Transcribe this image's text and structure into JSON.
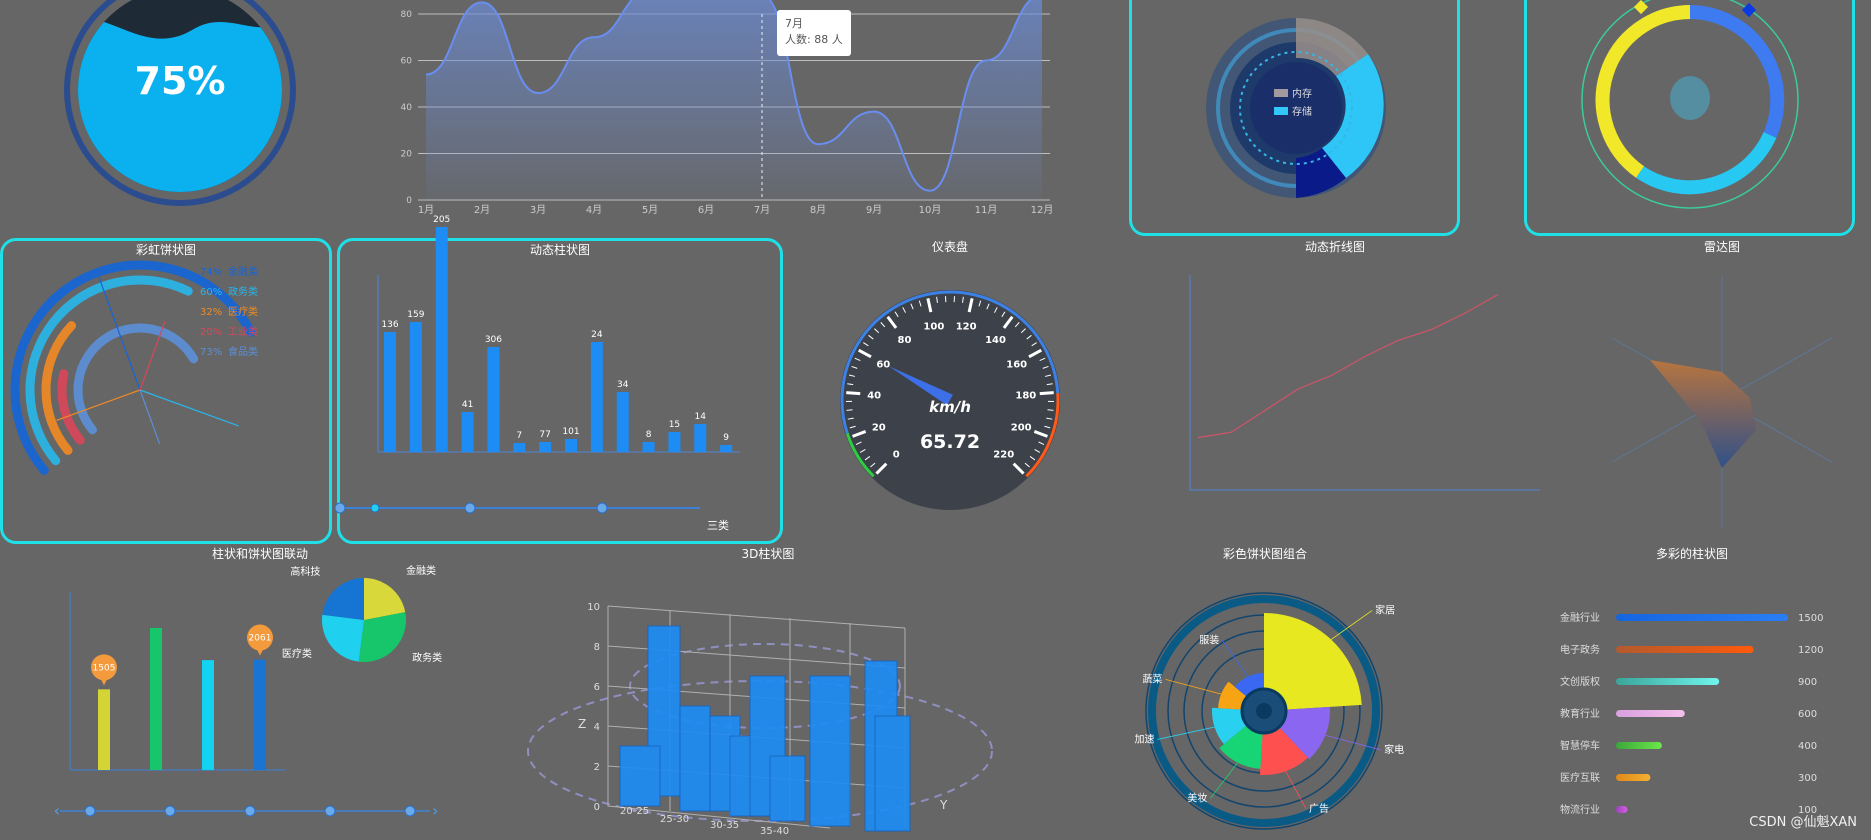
{
  "titles": {
    "rainbow_pie": "彩虹饼状图",
    "dynamic_bar": "动态柱状图",
    "gauge": "仪表盘",
    "dynamic_line": "动态折线图",
    "radar": "雷达图",
    "bar_pie_link": "柱状和饼状图联动",
    "bar3d": "3D柱状图",
    "color_pie_combo": "彩色饼状图组合",
    "colorful_bar": "多彩的柱状图"
  },
  "colors": {
    "panel_border": "#1fe0e6",
    "background": "#666666",
    "bar_blue": "#1e8cf5"
  },
  "watermark": "CSDN @仙魁XAN",
  "chart_data": [
    {
      "id": "liquid",
      "type": "liquidfill",
      "value_label": "75%",
      "value": 0.75
    },
    {
      "id": "area_line",
      "type": "area",
      "categories": [
        "1月",
        "2月",
        "3月",
        "4月",
        "5月",
        "6月",
        "7月",
        "8月",
        "9月",
        "10月",
        "11月",
        "12月"
      ],
      "values": [
        54,
        85,
        46,
        70,
        90,
        90,
        88,
        24,
        38,
        4,
        60,
        88
      ],
      "ylim": [
        0,
        80
      ],
      "yticks": [
        "0",
        "20",
        "40",
        "60",
        "80"
      ],
      "tooltip": {
        "title": "7月",
        "text": "人数:  88 人"
      }
    },
    {
      "id": "ring_memory",
      "type": "pie",
      "legend": [
        "内存",
        "存储"
      ]
    },
    {
      "id": "ring_progress",
      "type": "pie"
    },
    {
      "id": "rainbow_pie",
      "type": "bar",
      "series": [
        {
          "pct": "74%",
          "name": "金融类",
          "color": "#1565d8",
          "value": 74
        },
        {
          "pct": "60%",
          "name": "政务类",
          "color": "#29b6e8",
          "value": 60
        },
        {
          "pct": "32%",
          "name": "医疗类",
          "color": "#f08a24",
          "value": 32
        },
        {
          "pct": "20%",
          "name": "工业类",
          "color": "#d9475a",
          "value": 20
        },
        {
          "pct": "73%",
          "name": "食品类",
          "color": "#5b8fd6",
          "value": 73
        }
      ]
    },
    {
      "id": "dynamic_bar",
      "type": "bar",
      "values": [
        136,
        159,
        205,
        41,
        306,
        7,
        77,
        101,
        24,
        34,
        8,
        15,
        14,
        9
      ],
      "value_labels": [
        "136",
        "159",
        "205",
        "41",
        "306",
        "7",
        "77",
        "101",
        "24",
        "34",
        "8",
        "15",
        "14",
        "9"
      ],
      "bar_heights": [
        120,
        130,
        225,
        40,
        105,
        9,
        10,
        13,
        110,
        60,
        10,
        20,
        28,
        7
      ],
      "slider_label": "三类"
    },
    {
      "id": "gauge",
      "type": "gauge",
      "ticks": [
        "0",
        "20",
        "40",
        "60",
        "80",
        "100",
        "120",
        "140",
        "160",
        "180",
        "200",
        "220"
      ],
      "unit": "km/h",
      "value": 65.72,
      "value_label": "65.72"
    },
    {
      "id": "dynamic_line",
      "type": "line",
      "values": [
        12,
        14,
        22,
        30,
        35,
        42,
        48,
        52,
        58,
        65
      ]
    },
    {
      "id": "radar",
      "type": "radar"
    },
    {
      "id": "bar_pie_link",
      "type": "bar",
      "values": [
        1505,
        2650,
        2050,
        2061
      ],
      "value_labels": [
        "1505",
        "",
        "",
        "2061"
      ],
      "colors": [
        "#d4d437",
        "#17c66a",
        "#12d4f0",
        "#1a74d4"
      ],
      "pie_labels": [
        "金融类",
        "政务类",
        "医疗类",
        "高科技"
      ],
      "pie_values": [
        22,
        30,
        25,
        23
      ],
      "pie_colors": [
        "#d8d83a",
        "#17c66a",
        "#1fd0ef",
        "#1674d2"
      ]
    },
    {
      "id": "bar3d",
      "type": "bar",
      "axis": {
        "z": "Z",
        "y": "Y"
      },
      "zticks": [
        "0",
        "2",
        "4",
        "6",
        "8",
        "10"
      ],
      "xticks": [
        "20-25",
        "25-30",
        "30-35",
        "35-40"
      ]
    },
    {
      "id": "color_pie_combo",
      "type": "pie",
      "labels": [
        "家居",
        "家电",
        "广告",
        "美妆",
        "加速",
        "蔬菜",
        "服装"
      ],
      "values": [
        24,
        14,
        13,
        13,
        12,
        10,
        14
      ],
      "colors": [
        "#e8e821",
        "#8b66f0",
        "#ff5050",
        "#17d474",
        "#2ad0f0",
        "#f7a414",
        "#3a68f2"
      ]
    },
    {
      "id": "colorful_bar",
      "type": "bar",
      "categories": [
        "金融行业",
        "电子政务",
        "文创版权",
        "教育行业",
        "智慧停车",
        "医疗互联",
        "物流行业"
      ],
      "values": [
        1500,
        1200,
        900,
        600,
        400,
        300,
        100
      ],
      "value_labels": [
        "1500",
        "1200",
        "900",
        "600",
        "400",
        "300",
        "100"
      ],
      "colors": [
        [
          "#1565e0",
          "#2a7ef5"
        ],
        [
          "#b35a2e",
          "#ff5a0a"
        ],
        [
          "#3aa59a",
          "#6ff5ec"
        ],
        [
          "#d8a0e0",
          "#f5c0e8"
        ],
        [
          "#3aa83a",
          "#6ce84a"
        ],
        [
          "#e08a1a",
          "#f5b030"
        ],
        [
          "#a040c0",
          "#d060e0"
        ]
      ]
    }
  ]
}
